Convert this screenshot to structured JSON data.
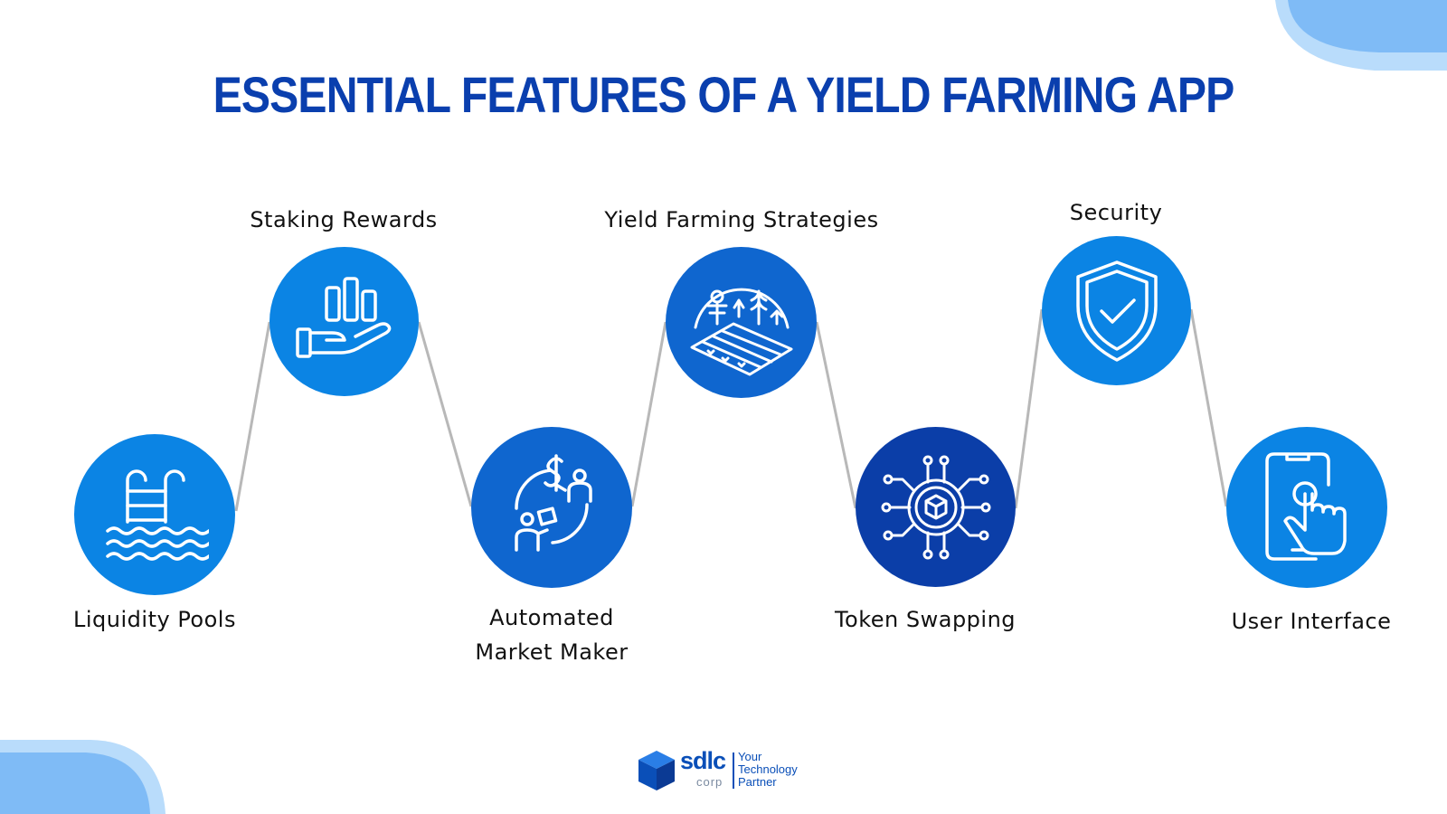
{
  "title": "ESSENTIAL FEATURES OF A YIELD FARMING APP",
  "colors": {
    "title": "#0a3fae",
    "circle_bright": "#0b84e4",
    "circle_mid": "#0f66cf",
    "circle_dark": "#0b3ea8",
    "connector": "#b8b8b8",
    "corner": "#7fbbf6"
  },
  "features": [
    {
      "label_lines": [
        "Liquidity Pools"
      ],
      "icon": "pool-ladder-icon"
    },
    {
      "label_lines": [
        "Staking Rewards"
      ],
      "icon": "hand-bar-chart-icon"
    },
    {
      "label_lines": [
        "Automated",
        "Market Maker"
      ],
      "icon": "exchange-people-icon"
    },
    {
      "label_lines": [
        "Yield Farming Strategies"
      ],
      "icon": "farm-field-icon"
    },
    {
      "label_lines": [
        "Token Swapping"
      ],
      "icon": "token-circuit-icon"
    },
    {
      "label_lines": [
        "Security"
      ],
      "icon": "shield-check-icon"
    },
    {
      "label_lines": [
        "User Interface"
      ],
      "icon": "touch-phone-icon"
    }
  ],
  "logo": {
    "word": "sdlc",
    "sub": "corp",
    "tagline_lines": [
      "Your",
      "Technology",
      "Partner"
    ]
  }
}
